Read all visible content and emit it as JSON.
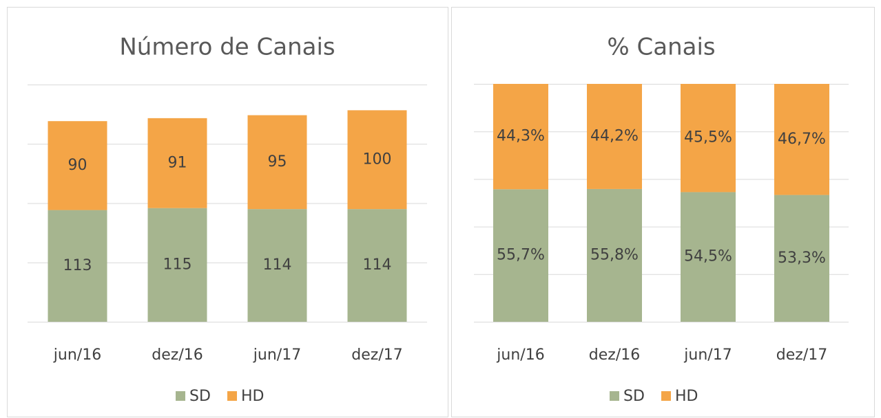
{
  "chart_data": [
    {
      "type": "stacked_bar",
      "title": "Número de Canais",
      "categories": [
        "jun/16",
        "dez/16",
        "jun/17",
        "dez/17"
      ],
      "series": [
        {
          "name": "SD",
          "color": "#a6b58f",
          "values": [
            113,
            115,
            114,
            114
          ]
        },
        {
          "name": "HD",
          "color": "#f4a547",
          "values": [
            90,
            91,
            95,
            100
          ]
        }
      ],
      "ylim": [
        0,
        240
      ],
      "yticks": [
        0,
        60,
        120,
        180,
        240
      ],
      "grid": true,
      "legend": "bottom"
    },
    {
      "type": "stacked_bar",
      "title": "% Canais",
      "categories": [
        "jun/16",
        "dez/16",
        "jun/17",
        "dez/17"
      ],
      "series": [
        {
          "name": "SD",
          "color": "#a6b58f",
          "values": [
            55.7,
            55.8,
            54.5,
            53.3
          ],
          "value_labels": [
            "55,7%",
            "55,8%",
            "54,5%",
            "53,3%"
          ]
        },
        {
          "name": "HD",
          "color": "#f4a547",
          "values": [
            44.3,
            44.2,
            45.5,
            46.7
          ],
          "value_labels": [
            "44,3%",
            "44,2%",
            "45,5%",
            "46,7%"
          ]
        }
      ],
      "ylim": [
        0,
        100
      ],
      "yticks": [
        0,
        20,
        40,
        60,
        80,
        100
      ],
      "grid": true,
      "legend": "bottom"
    }
  ]
}
